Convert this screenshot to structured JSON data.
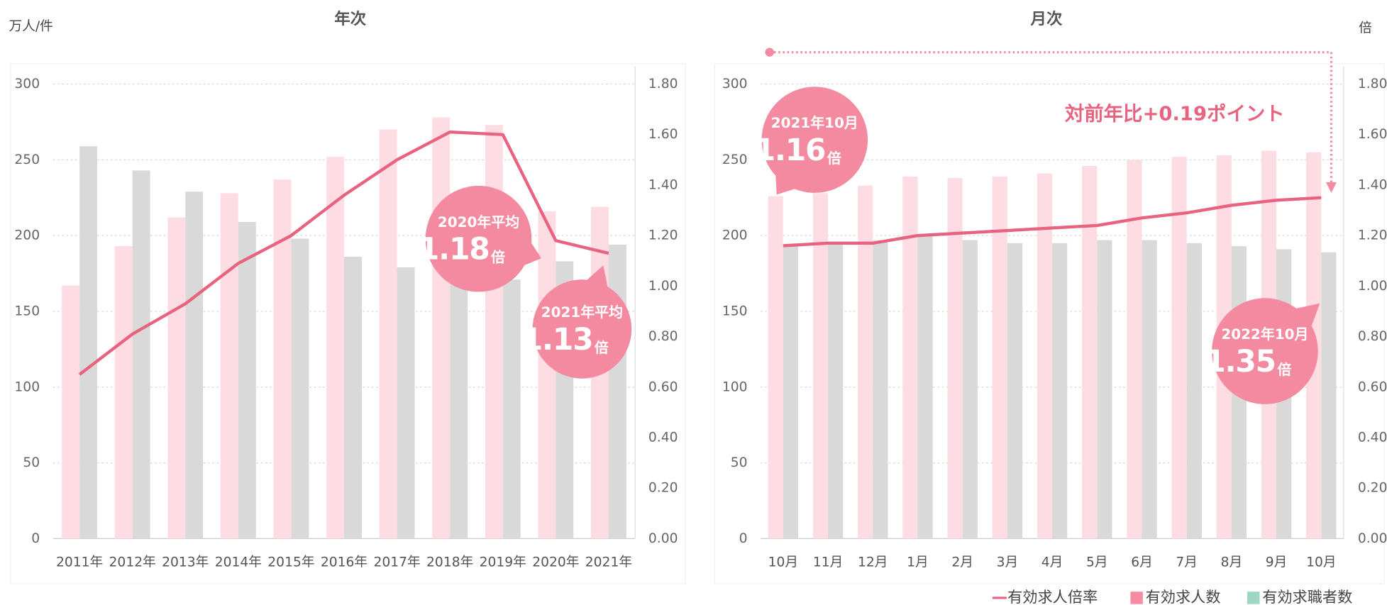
{
  "chart_data": [
    {
      "type": "bar",
      "title": "年次",
      "ylabel": "万人/件",
      "categories": [
        "2011年",
        "2012年",
        "2013年",
        "2014年",
        "2015年",
        "2016年",
        "2017年",
        "2018年",
        "2019年",
        "2020年",
        "2021年"
      ],
      "series": [
        {
          "name": "有効求人倍率",
          "type": "line",
          "axis": "y2",
          "color": "#e8637f",
          "values": [
            0.65,
            0.81,
            0.93,
            1.09,
            1.2,
            1.36,
            1.5,
            1.61,
            1.6,
            1.18,
            1.13
          ]
        },
        {
          "name": "有効求人数",
          "type": "bar",
          "color": "#fddde3",
          "legend_color": "#f58ca0",
          "values": [
            167,
            193,
            212,
            228,
            237,
            252,
            270,
            278,
            273,
            216,
            219
          ]
        },
        {
          "name": "有効求職者数",
          "type": "bar",
          "color": "#d9d9d9",
          "legend_color": "#9fd5c3",
          "values": [
            259,
            243,
            229,
            209,
            198,
            186,
            179,
            172,
            171,
            183,
            194
          ]
        }
      ],
      "ylim": [
        0,
        300
      ],
      "yticks": [
        0,
        50,
        100,
        150,
        200,
        250,
        300
      ],
      "y2lim": [
        0,
        1.8
      ],
      "y2ticks": [
        {
          "value": 0,
          "label": "0.00"
        },
        {
          "value": 0.2,
          "label": "0.20"
        },
        {
          "value": 0.4,
          "label": "0.40"
        },
        {
          "value": 0.6,
          "label": "0.60"
        },
        {
          "value": 0.8,
          "label": "0.80"
        },
        {
          "value": 1.0,
          "label": "1.00"
        },
        {
          "value": 1.2,
          "label": "1.20"
        },
        {
          "value": 1.4,
          "label": "1.40"
        },
        {
          "value": 1.6,
          "label": "1.60"
        },
        {
          "value": 1.8,
          "label": "1.80"
        }
      ],
      "grid": true,
      "annotations": [
        {
          "title": "2020年平均",
          "value": "1.18",
          "unit": "倍"
        },
        {
          "title": "2021年平均",
          "value": "1.13",
          "unit": "倍"
        }
      ]
    },
    {
      "type": "bar",
      "title": "月次",
      "y2label": "倍",
      "categories": [
        "10月",
        "11月",
        "12月",
        "1月",
        "2月",
        "3月",
        "4月",
        "5月",
        "6月",
        "7月",
        "8月",
        "9月",
        "10月"
      ],
      "series": [
        {
          "name": "有効求人倍率",
          "type": "line",
          "axis": "y2",
          "color": "#e8637f",
          "values": [
            1.16,
            1.17,
            1.17,
            1.2,
            1.21,
            1.22,
            1.23,
            1.24,
            1.27,
            1.29,
            1.32,
            1.34,
            1.35
          ]
        },
        {
          "name": "有効求人数",
          "type": "bar",
          "color": "#fddde3",
          "values": [
            226,
            228,
            233,
            239,
            238,
            239,
            241,
            246,
            250,
            252,
            253,
            256,
            255
          ]
        },
        {
          "name": "有効求職者数",
          "type": "bar",
          "color": "#d9d9d9",
          "values": [
            193,
            194,
            197,
            200,
            197,
            195,
            195,
            197,
            197,
            195,
            193,
            191,
            189
          ]
        }
      ],
      "ylim": [
        0,
        300
      ],
      "yticks": [
        0,
        50,
        100,
        150,
        200,
        250,
        300
      ],
      "y2lim": [
        0,
        1.8
      ],
      "y2ticks": [
        {
          "value": 0,
          "label": "0.00"
        },
        {
          "value": 0.2,
          "label": "0.20"
        },
        {
          "value": 0.4,
          "label": "0.40"
        },
        {
          "value": 0.6,
          "label": "0.60"
        },
        {
          "value": 0.8,
          "label": "0.80"
        },
        {
          "value": 1.0,
          "label": "1.00"
        },
        {
          "value": 1.2,
          "label": "1.20"
        },
        {
          "value": 1.4,
          "label": "1.40"
        },
        {
          "value": 1.6,
          "label": "1.60"
        },
        {
          "value": 1.8,
          "label": "1.80"
        }
      ],
      "grid": true,
      "annotations": [
        {
          "title": "2021年10月",
          "value": "1.16",
          "unit": "倍"
        },
        {
          "title": "2022年10月",
          "value": "1.35",
          "unit": "倍"
        }
      ],
      "note": "対前年比+0.19ポイント"
    }
  ]
}
